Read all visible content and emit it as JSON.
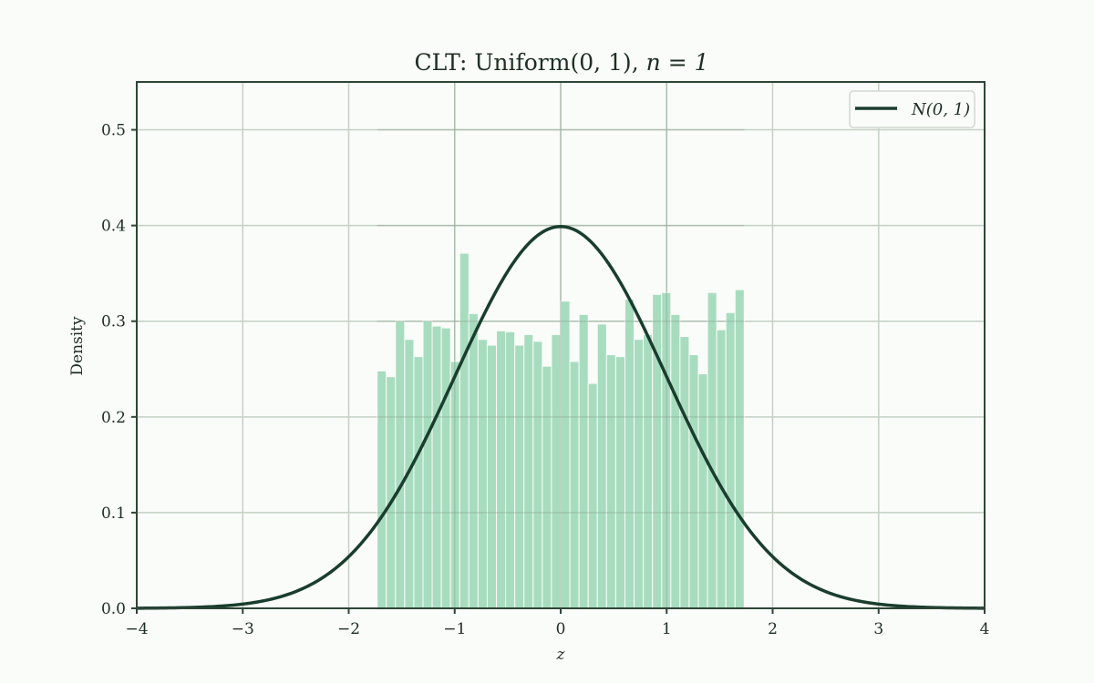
{
  "chart_data": {
    "type": "bar",
    "title": "CLT: Uniform(0, 1), n = 1",
    "title_parts": {
      "plain": "CLT: Uniform",
      "math_args": "(0, 1)",
      "sep": ",",
      "math_n": "n = 1"
    },
    "xlabel": "z",
    "ylabel": "Density",
    "xlim": [
      -4,
      4
    ],
    "ylim": [
      0,
      0.55
    ],
    "xticks": [
      -4,
      -3,
      -2,
      -1,
      0,
      1,
      2,
      3,
      4
    ],
    "xtick_labels": [
      "−4",
      "−3",
      "−2",
      "−1",
      "0",
      "1",
      "2",
      "3",
      "4"
    ],
    "yticks": [
      0.0,
      0.1,
      0.2,
      0.3,
      0.4,
      0.5
    ],
    "ytick_labels": [
      "0.0",
      "0.1",
      "0.2",
      "0.3",
      "0.4",
      "0.5"
    ],
    "grid": true,
    "legend_position": "upper right",
    "legend": [
      {
        "label": "N(0, 1)",
        "type": "line",
        "color": "#1a3d2e"
      }
    ],
    "histogram": {
      "range": [
        -1.732,
        1.732
      ],
      "bins": 40,
      "color": "#a8dcbf",
      "values": [
        0.248,
        0.242,
        0.3,
        0.281,
        0.263,
        0.3,
        0.295,
        0.293,
        0.258,
        0.371,
        0.308,
        0.281,
        0.275,
        0.29,
        0.289,
        0.275,
        0.286,
        0.279,
        0.253,
        0.286,
        0.321,
        0.258,
        0.307,
        0.235,
        0.297,
        0.265,
        0.263,
        0.323,
        0.281,
        0.286,
        0.328,
        0.33,
        0.307,
        0.284,
        0.265,
        0.245,
        0.33,
        0.291,
        0.309,
        0.333
      ]
    },
    "series": [
      {
        "name": "N(0, 1)",
        "type": "line",
        "function": "standard normal pdf",
        "color": "#1a3d2e",
        "x": [
          -4,
          -3,
          -2,
          -1.5,
          -1,
          -0.5,
          0,
          0.5,
          1,
          1.5,
          2,
          3,
          4
        ],
        "values": [
          0.0001,
          0.0044,
          0.054,
          0.1295,
          0.242,
          0.352,
          0.399,
          0.352,
          0.242,
          0.1295,
          0.054,
          0.0044,
          0.0001
        ]
      }
    ]
  },
  "colors": {
    "background": "#f9fcf8",
    "axes": "#2e4536",
    "grid": "#c5d0c5",
    "bars": "#a8dcbf",
    "curve": "#1a3d2e",
    "text": "#1e2e23"
  }
}
